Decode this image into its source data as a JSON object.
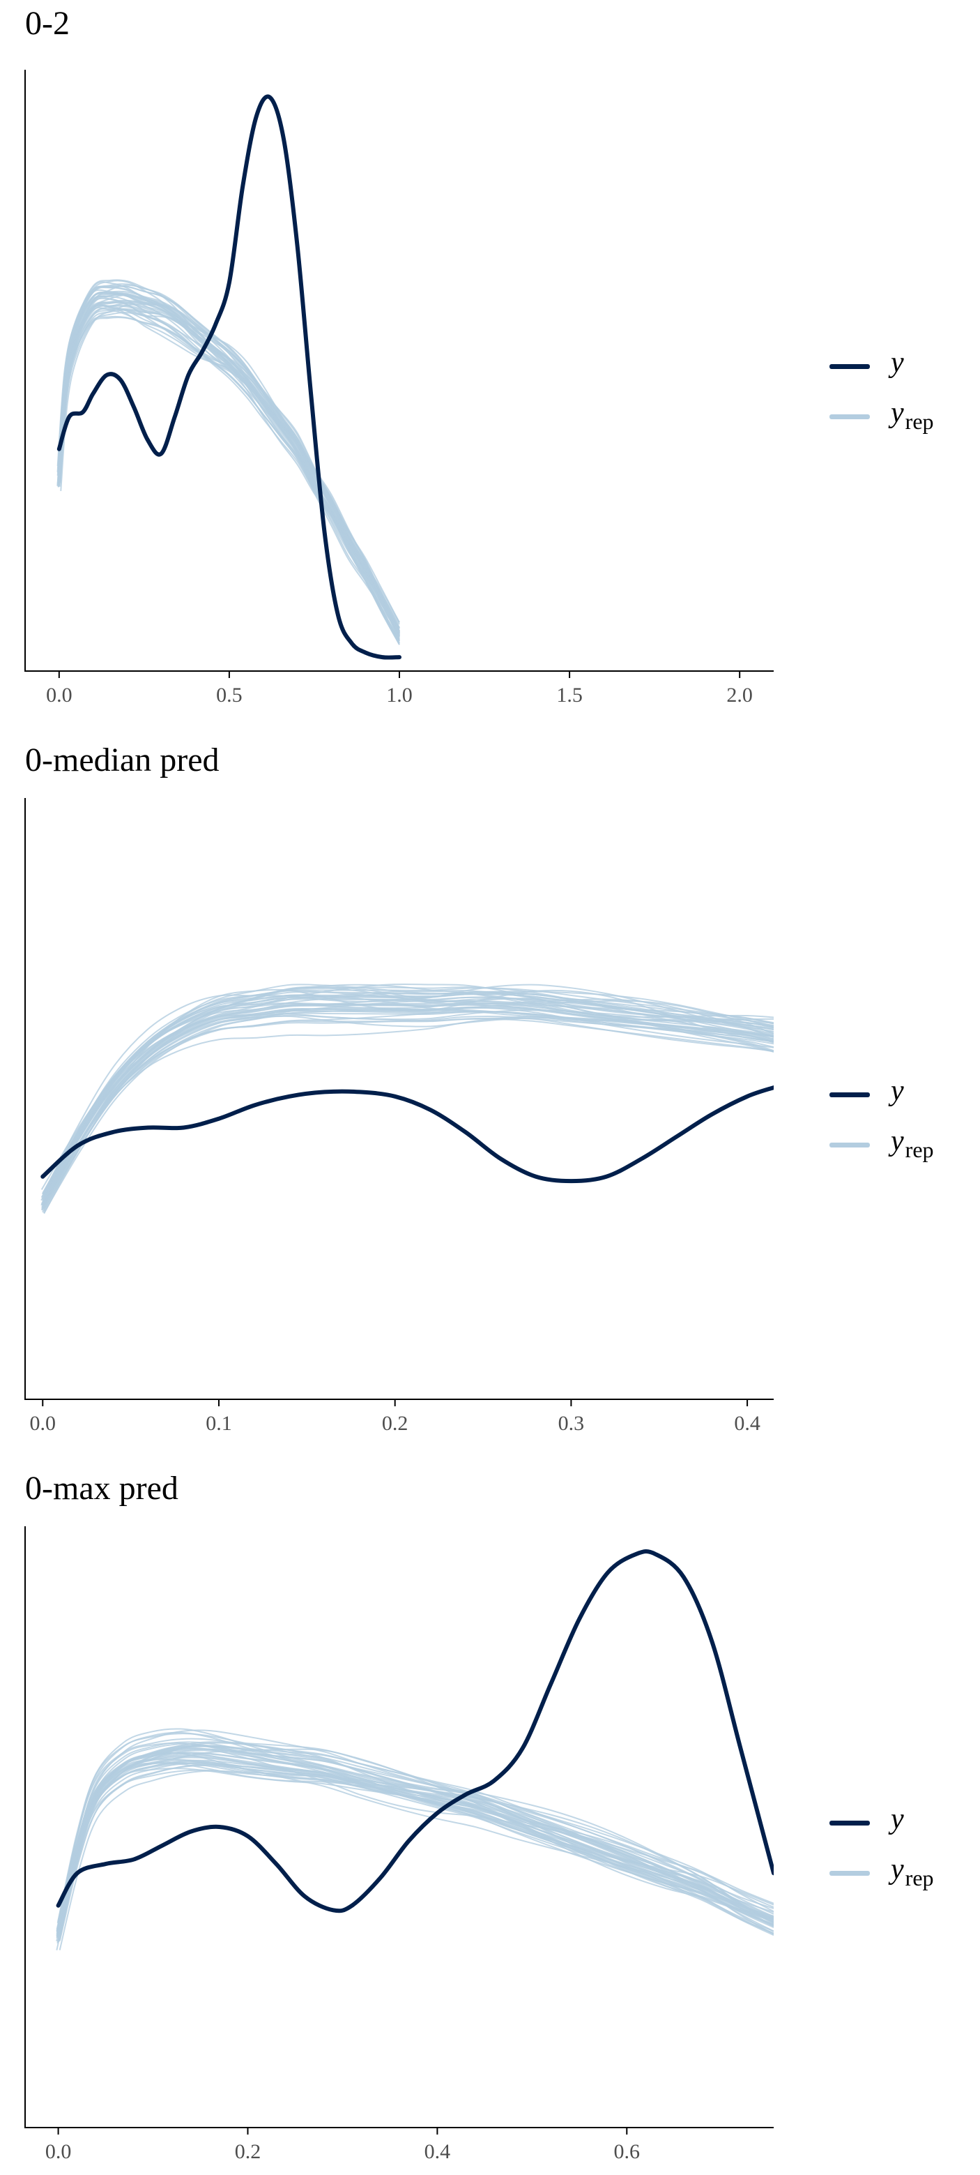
{
  "colors": {
    "y": "#011f4b",
    "yrep": "#b3cde0",
    "axis": "#000000",
    "tick_text": "#4d4d4d"
  },
  "legend": {
    "y_label": "y",
    "yrep_main": "y",
    "yrep_sub": "rep"
  },
  "chart_data": [
    {
      "type": "line",
      "title": "0-2",
      "xlabel": "",
      "ylabel": "",
      "xlim": [
        -0.1,
        2.1
      ],
      "ylim": [
        0,
        1.3
      ],
      "x_ticks": [
        0.0,
        0.5,
        1.0,
        1.5,
        2.0
      ],
      "x_tick_labels": [
        "0.0",
        "0.5",
        "1.0",
        "1.5",
        "2.0"
      ],
      "y_axis_ticks_shown": false,
      "grid": false,
      "legend_position": "right",
      "series": [
        {
          "name": "y",
          "x": [
            0.0,
            0.03,
            0.07,
            0.1,
            0.14,
            0.18,
            0.22,
            0.26,
            0.3,
            0.34,
            0.38,
            0.42,
            0.46,
            0.5,
            0.54,
            0.58,
            0.62,
            0.66,
            0.7,
            0.74,
            0.78,
            0.82,
            0.86,
            0.9,
            0.95,
            1.0
          ],
          "values": [
            0.48,
            0.55,
            0.56,
            0.6,
            0.64,
            0.63,
            0.57,
            0.5,
            0.47,
            0.55,
            0.64,
            0.69,
            0.75,
            0.84,
            1.05,
            1.2,
            1.24,
            1.15,
            0.92,
            0.6,
            0.3,
            0.12,
            0.06,
            0.04,
            0.03,
            0.03
          ]
        },
        {
          "name": "y",
          "sub": "rep",
          "draws": 40,
          "x": [
            0.0,
            0.02,
            0.05,
            0.1,
            0.15,
            0.2,
            0.25,
            0.3,
            0.35,
            0.4,
            0.45,
            0.5,
            0.55,
            0.6,
            0.65,
            0.7,
            0.75,
            0.8,
            0.85,
            0.9,
            0.95,
            1.0
          ],
          "values": [
            0.42,
            0.62,
            0.72,
            0.79,
            0.8,
            0.8,
            0.79,
            0.78,
            0.76,
            0.73,
            0.7,
            0.67,
            0.63,
            0.58,
            0.53,
            0.48,
            0.41,
            0.35,
            0.28,
            0.22,
            0.15,
            0.08
          ]
        }
      ]
    },
    {
      "type": "line",
      "title": "0-median pred",
      "xlabel": "",
      "ylabel": "",
      "xlim": [
        -0.01,
        0.415
      ],
      "ylim": [
        0,
        1.35
      ],
      "x_ticks": [
        0.0,
        0.1,
        0.2,
        0.3,
        0.4
      ],
      "x_tick_labels": [
        "0.0",
        "0.1",
        "0.2",
        "0.3",
        "0.4"
      ],
      "y_axis_ticks_shown": false,
      "grid": false,
      "legend_position": "right",
      "series": [
        {
          "name": "y",
          "x": [
            0.0,
            0.02,
            0.04,
            0.06,
            0.08,
            0.1,
            0.12,
            0.14,
            0.16,
            0.18,
            0.2,
            0.22,
            0.24,
            0.26,
            0.28,
            0.3,
            0.32,
            0.34,
            0.36,
            0.38,
            0.4,
            0.415
          ],
          "values": [
            0.5,
            0.57,
            0.6,
            0.61,
            0.61,
            0.63,
            0.66,
            0.68,
            0.69,
            0.69,
            0.68,
            0.65,
            0.6,
            0.54,
            0.5,
            0.49,
            0.5,
            0.54,
            0.59,
            0.64,
            0.68,
            0.7
          ]
        },
        {
          "name": "y",
          "sub": "rep",
          "draws": 40,
          "x": [
            0.0,
            0.02,
            0.04,
            0.06,
            0.08,
            0.1,
            0.12,
            0.14,
            0.16,
            0.18,
            0.2,
            0.22,
            0.24,
            0.26,
            0.28,
            0.3,
            0.32,
            0.34,
            0.36,
            0.38,
            0.4,
            0.415
          ],
          "values": [
            0.44,
            0.58,
            0.7,
            0.78,
            0.83,
            0.86,
            0.87,
            0.88,
            0.88,
            0.88,
            0.88,
            0.88,
            0.885,
            0.885,
            0.88,
            0.87,
            0.86,
            0.85,
            0.84,
            0.83,
            0.82,
            0.81
          ]
        }
      ]
    },
    {
      "type": "line",
      "title": "0-max pred",
      "xlabel": "",
      "ylabel": "",
      "xlim": [
        -0.035,
        0.755
      ],
      "ylim": [
        0,
        1.3
      ],
      "x_ticks": [
        0.0,
        0.2,
        0.4,
        0.6
      ],
      "x_tick_labels": [
        "0.0",
        "0.2",
        "0.4",
        "0.6"
      ],
      "y_axis_ticks_shown": false,
      "grid": false,
      "legend_position": "right",
      "series": [
        {
          "name": "y",
          "x": [
            0.0,
            0.02,
            0.05,
            0.08,
            0.11,
            0.14,
            0.17,
            0.2,
            0.23,
            0.26,
            0.29,
            0.31,
            0.34,
            0.37,
            0.4,
            0.43,
            0.46,
            0.49,
            0.52,
            0.55,
            0.58,
            0.61,
            0.63,
            0.66,
            0.69,
            0.72,
            0.755
          ],
          "values": [
            0.48,
            0.55,
            0.57,
            0.58,
            0.61,
            0.64,
            0.65,
            0.63,
            0.57,
            0.5,
            0.47,
            0.48,
            0.54,
            0.62,
            0.68,
            0.72,
            0.75,
            0.82,
            0.96,
            1.1,
            1.2,
            1.24,
            1.24,
            1.19,
            1.05,
            0.82,
            0.55
          ]
        },
        {
          "name": "y",
          "sub": "rep",
          "draws": 40,
          "x": [
            0.0,
            0.02,
            0.04,
            0.07,
            0.1,
            0.13,
            0.16,
            0.2,
            0.24,
            0.28,
            0.32,
            0.36,
            0.4,
            0.44,
            0.48,
            0.52,
            0.56,
            0.6,
            0.64,
            0.68,
            0.72,
            0.755
          ],
          "values": [
            0.42,
            0.6,
            0.72,
            0.78,
            0.8,
            0.81,
            0.81,
            0.8,
            0.79,
            0.78,
            0.76,
            0.74,
            0.72,
            0.7,
            0.67,
            0.64,
            0.61,
            0.58,
            0.55,
            0.52,
            0.48,
            0.45
          ]
        }
      ]
    }
  ]
}
